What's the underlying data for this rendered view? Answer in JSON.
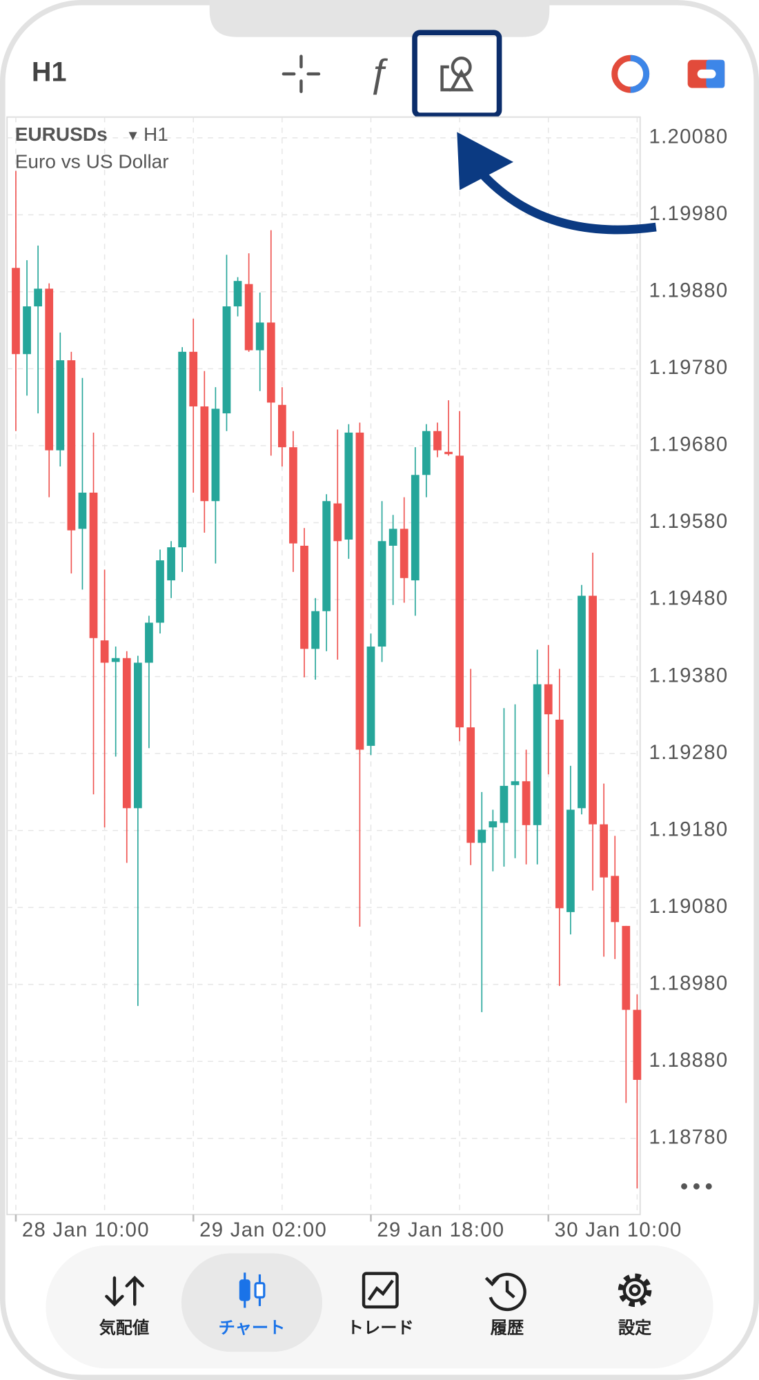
{
  "toolbar": {
    "timeframe": "H1"
  },
  "chart_data": {
    "type": "candlestick",
    "symbol": "EURUSDs",
    "timeframe": "H1",
    "description": "Euro vs US Dollar",
    "categories": [
      "28 Jan 10:00",
      null,
      null,
      null,
      null,
      null,
      null,
      null,
      null,
      null,
      null,
      null,
      null,
      null,
      null,
      null,
      "29 Jan 02:00",
      null,
      null,
      null,
      null,
      null,
      null,
      null,
      null,
      null,
      null,
      null,
      null,
      null,
      null,
      null,
      "29 Jan 18:00",
      null,
      null,
      null,
      null,
      null,
      null,
      null,
      null,
      null,
      null,
      null,
      null,
      null,
      null,
      null,
      "30 Jan 10:00",
      null,
      null,
      null,
      null,
      null,
      null,
      null,
      null
    ],
    "open": [
      1.19911,
      1.19799,
      1.19861,
      1.19884,
      1.19674,
      1.19791,
      1.19572,
      1.19619,
      1.19427,
      1.19399,
      1.19404,
      1.19209,
      1.19398,
      1.1945,
      1.19505,
      1.19548,
      1.19802,
      1.19731,
      1.19608,
      1.19722,
      1.19861,
      1.1989,
      1.19804,
      1.1984,
      1.19733,
      1.19678,
      1.1955,
      1.19416,
      1.19465,
      1.19605,
      1.19558,
      1.19697,
      1.1929,
      1.19419,
      1.1955,
      1.19572,
      1.19505,
      1.19642,
      1.19699,
      1.19672,
      1.19667,
      1.19314,
      1.19164,
      1.19184,
      1.1919,
      1.19239,
      1.19244,
      1.19187,
      1.1937,
      1.19324,
      1.19074,
      1.19209,
      1.19485,
      1.19188,
      1.19121,
      1.19056,
      1.18947
    ],
    "high": [
      1.20037,
      1.19921,
      1.1994,
      1.19891,
      1.19827,
      1.19802,
      1.19768,
      1.19697,
      1.19519,
      1.19419,
      1.19413,
      1.19407,
      1.19459,
      1.19545,
      1.19556,
      1.19808,
      1.19845,
      1.19777,
      1.19756,
      1.19928,
      1.19899,
      1.1993,
      1.19879,
      1.1996,
      1.19756,
      1.19699,
      1.19573,
      1.19482,
      1.19617,
      1.19701,
      1.19708,
      1.1971,
      1.19436,
      1.19608,
      1.1959,
      1.19613,
      1.19678,
      1.19708,
      1.1971,
      1.19739,
      1.19725,
      1.1939,
      1.1923,
      1.19207,
      1.19339,
      1.19344,
      1.19285,
      1.19415,
      1.19421,
      1.1939,
      1.19264,
      1.19499,
      1.19541,
      1.19241,
      1.19173,
      1.19056,
      1.18967
    ],
    "low": [
      1.19699,
      1.19745,
      1.19722,
      1.19613,
      1.19653,
      1.19514,
      1.19493,
      1.19227,
      1.19184,
      1.19276,
      1.19138,
      1.18952,
      1.19287,
      1.19436,
      1.19482,
      1.19516,
      1.19619,
      1.19567,
      1.19527,
      1.19699,
      1.19848,
      1.19802,
      1.19751,
      1.19667,
      1.19653,
      1.19516,
      1.19379,
      1.19376,
      1.19413,
      1.19402,
      1.19533,
      1.19055,
      1.19278,
      1.19399,
      1.19473,
      1.19476,
      1.19459,
      1.19613,
      1.19665,
      1.19667,
      1.19296,
      1.19135,
      1.18944,
      1.19127,
      1.19133,
      1.19144,
      1.19136,
      1.19136,
      1.19253,
      1.18978,
      1.19045,
      1.19201,
      1.19102,
      1.19016,
      1.19013,
      1.18826,
      1.18715
    ],
    "close": [
      1.19799,
      1.19861,
      1.19884,
      1.19674,
      1.19791,
      1.1957,
      1.19619,
      1.1943,
      1.19398,
      1.19404,
      1.19209,
      1.19398,
      1.1945,
      1.19531,
      1.19548,
      1.19802,
      1.19731,
      1.19608,
      1.19728,
      1.19861,
      1.19894,
      1.19804,
      1.1984,
      1.19736,
      1.19678,
      1.19553,
      1.19416,
      1.19465,
      1.19608,
      1.19556,
      1.19697,
      1.19285,
      1.19419,
      1.19556,
      1.19572,
      1.19508,
      1.19642,
      1.19699,
      1.19674,
      1.19669,
      1.19314,
      1.19164,
      1.19181,
      1.19192,
      1.19238,
      1.19244,
      1.19187,
      1.1937,
      1.19331,
      1.19079,
      1.19207,
      1.19485,
      1.19188,
      1.19119,
      1.19061,
      1.18947,
      1.18856
    ],
    "up_color": "#26a69a",
    "down_color": "#ef5350",
    "ylim": [
      1.18681,
      1.20107
    ],
    "yticks": [
      {
        "value": 1.2008,
        "label": "1.20080"
      },
      {
        "value": 1.1998,
        "label": "1.19980"
      },
      {
        "value": 1.1988,
        "label": "1.19880"
      },
      {
        "value": 1.1978,
        "label": "1.19780"
      },
      {
        "value": 1.1968,
        "label": "1.19680"
      },
      {
        "value": 1.1958,
        "label": "1.19580"
      },
      {
        "value": 1.1948,
        "label": "1.19480"
      },
      {
        "value": 1.1938,
        "label": "1.19380"
      },
      {
        "value": 1.1928,
        "label": "1.19280"
      },
      {
        "value": 1.1918,
        "label": "1.19180"
      },
      {
        "value": 1.1908,
        "label": "1.19080"
      },
      {
        "value": 1.1898,
        "label": "1.18980"
      },
      {
        "value": 1.1888,
        "label": "1.18880"
      },
      {
        "value": 1.1878,
        "label": "1.18780"
      }
    ],
    "grid": true
  },
  "nav": {
    "items": [
      "気配値",
      "チャート",
      "トレード",
      "履歴",
      "設定"
    ]
  }
}
